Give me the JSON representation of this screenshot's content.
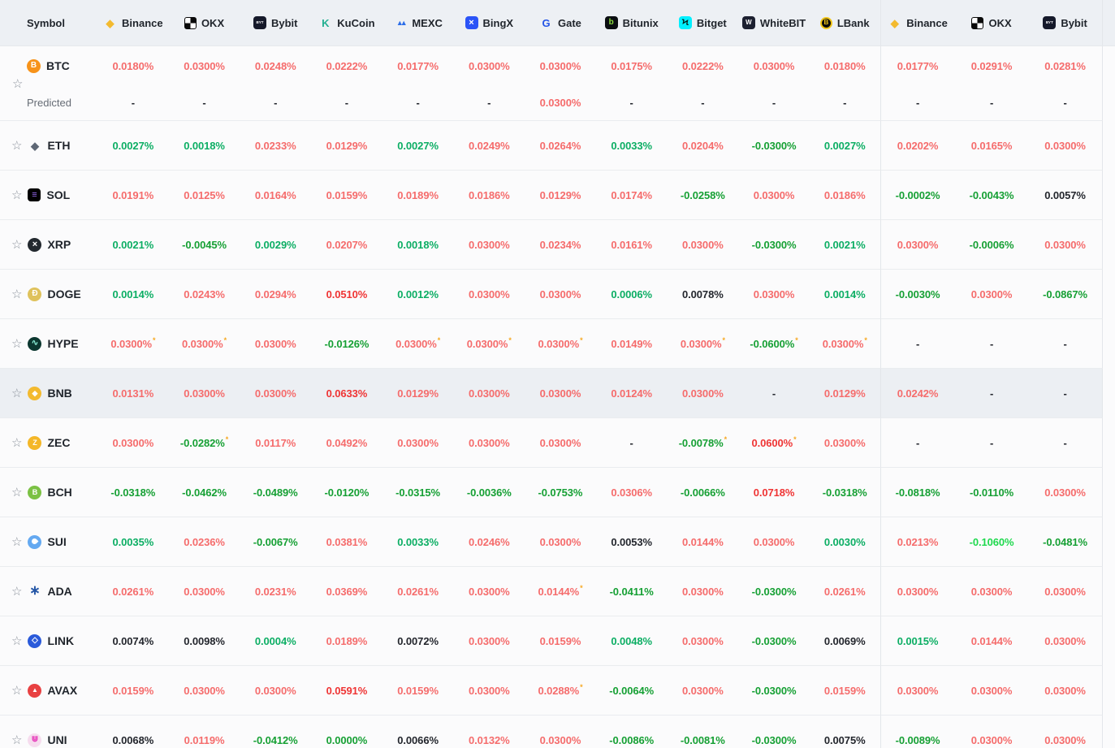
{
  "colors": {
    "red": "#f56c6c",
    "strongRed": "#ef3434",
    "green": "#0cae64",
    "darkGreen": "#16a034",
    "limeGreen": "#1fd94e",
    "black": "#23262d",
    "dash": "#23262d",
    "asterisk": "#f6a821"
  },
  "ui": {
    "star_glyph": "☆",
    "predicted_label": "Predicted"
  },
  "header": {
    "columns": [
      {
        "label": "Symbol"
      },
      {
        "label": "Binance",
        "icon": "binance"
      },
      {
        "label": "OKX",
        "icon": "okx"
      },
      {
        "label": "Bybit",
        "icon": "bybit"
      },
      {
        "label": "KuCoin",
        "icon": "kucoin"
      },
      {
        "label": "MEXC",
        "icon": "mexc"
      },
      {
        "label": "BingX",
        "icon": "bingx"
      },
      {
        "label": "Gate",
        "icon": "gate"
      },
      {
        "label": "Bitunix",
        "icon": "bitunix"
      },
      {
        "label": "Bitget",
        "icon": "bitget"
      },
      {
        "label": "WhiteBIT",
        "icon": "whitebit"
      },
      {
        "label": "LBank",
        "icon": "lbank"
      },
      {
        "label": "Binance",
        "icon": "binance"
      },
      {
        "label": "OKX",
        "icon": "okx"
      },
      {
        "label": "Bybit",
        "icon": "bybit"
      }
    ]
  },
  "exchange_icons": {
    "binance": {
      "shape": "none",
      "fg": "#f3ba2f",
      "glyph": "◆",
      "size": 13
    },
    "okx": {
      "shape": "checker",
      "glyph": ""
    },
    "bybit": {
      "shape": "square",
      "bg": "#15192a",
      "fg": "#ffffff",
      "glyph": "BYT",
      "size": 4.5
    },
    "kucoin": {
      "shape": "none",
      "fg": "#23af91",
      "glyph": "K",
      "size": 13
    },
    "mexc": {
      "shape": "none",
      "fg": "#2b6de8",
      "glyph": "▲▲",
      "size": 9,
      "ls": -4
    },
    "bingx": {
      "shape": "square",
      "bg": "#2b54f7",
      "fg": "#ffffff",
      "glyph": "×",
      "size": 11
    },
    "gate": {
      "shape": "none",
      "fg": "#2354e6",
      "glyph": "G",
      "size": 13
    },
    "bitunix": {
      "shape": "square",
      "bg": "#0b0e11",
      "fg": "#8bdc3f",
      "glyph": "b",
      "size": 10
    },
    "bitget": {
      "shape": "square",
      "bg": "#00f0ff",
      "fg": "#06211b",
      "glyph": "Ϟ",
      "size": 11
    },
    "whitebit": {
      "shape": "square",
      "bg": "#1c2030",
      "fg": "#ffffff",
      "glyph": "W",
      "size": 8
    },
    "lbank": {
      "shape": "lbank",
      "fg": "#f0c418",
      "glyph": "B",
      "size": 8
    }
  },
  "coin_icons": {
    "btc": {
      "shape": "circle",
      "bg": "#f7931a",
      "fg": "#ffffff",
      "glyph": "B",
      "size": 10
    },
    "eth": {
      "shape": "none",
      "fg": "#5f6876",
      "glyph": "◆",
      "size": 13
    },
    "sol": {
      "shape": "square",
      "bg": "#000000",
      "fg": "#9b6cf5",
      "glyph": "≡",
      "size": 11
    },
    "xrp": {
      "shape": "circle",
      "bg": "#23292f",
      "fg": "#ffffff",
      "glyph": "×",
      "size": 11
    },
    "doge": {
      "shape": "circle",
      "bg": "#dfc25c",
      "fg": "#ffffff",
      "glyph": "Ð",
      "size": 10
    },
    "hype": {
      "shape": "circle",
      "bg": "#0c3730",
      "fg": "#8ef5dc",
      "glyph": "∿",
      "size": 10
    },
    "bnb": {
      "shape": "circle",
      "bg": "#f3ba2f",
      "fg": "#ffffff",
      "glyph": "◆",
      "size": 9
    },
    "zec": {
      "shape": "circle",
      "bg": "#f4b728",
      "fg": "#ffffff",
      "glyph": "Z",
      "size": 9
    },
    "bch": {
      "shape": "circle",
      "bg": "#7bc144",
      "fg": "#ffffff",
      "glyph": "B",
      "size": 9
    },
    "sui": {
      "shape": "drop",
      "bg": "#64a9f1",
      "glyph": ""
    },
    "ada": {
      "shape": "none",
      "fg": "#2456a6",
      "glyph": "∗",
      "size": 16
    },
    "link": {
      "shape": "circle",
      "bg": "#2a5ada",
      "fg": "#ffffff",
      "glyph": "◇",
      "size": 10
    },
    "avax": {
      "shape": "circle",
      "bg": "#e84142",
      "fg": "#ffffff",
      "glyph": "▲",
      "size": 8
    },
    "uni": {
      "shape": "circle",
      "bg": "#f6dcee",
      "fg": "#e633b8",
      "glyph": "⋓",
      "size": 10
    }
  },
  "rows": [
    {
      "symbol": "BTC",
      "icon": "btc",
      "cells": [
        [
          "0.0180%",
          "red"
        ],
        [
          "0.0300%",
          "red"
        ],
        [
          "0.0248%",
          "red"
        ],
        [
          "0.0222%",
          "red"
        ],
        [
          "0.0177%",
          "red"
        ],
        [
          "0.0300%",
          "red"
        ],
        [
          "0.0300%",
          "red"
        ],
        [
          "0.0175%",
          "red"
        ],
        [
          "0.0222%",
          "red"
        ],
        [
          "0.0300%",
          "red"
        ],
        [
          "0.0180%",
          "red"
        ],
        [
          "0.0177%",
          "red"
        ],
        [
          "0.0291%",
          "red"
        ],
        [
          "0.0281%",
          "red"
        ]
      ],
      "predicted": {
        "label": "Predicted",
        "cells": [
          [
            "-",
            "dash"
          ],
          [
            "-",
            "dash"
          ],
          [
            "-",
            "dash"
          ],
          [
            "-",
            "dash"
          ],
          [
            "-",
            "dash"
          ],
          [
            "-",
            "dash"
          ],
          [
            "0.0300%",
            "red"
          ],
          [
            "-",
            "dash"
          ],
          [
            "-",
            "dash"
          ],
          [
            "-",
            "dash"
          ],
          [
            "-",
            "dash"
          ],
          [
            "-",
            "dash"
          ],
          [
            "-",
            "dash"
          ],
          [
            "-",
            "dash"
          ]
        ]
      }
    },
    {
      "symbol": "ETH",
      "icon": "eth",
      "cells": [
        [
          "0.0027%",
          "green"
        ],
        [
          "0.0018%",
          "green"
        ],
        [
          "0.0233%",
          "red"
        ],
        [
          "0.0129%",
          "red"
        ],
        [
          "0.0027%",
          "green"
        ],
        [
          "0.0249%",
          "red"
        ],
        [
          "0.0264%",
          "red"
        ],
        [
          "0.0033%",
          "green"
        ],
        [
          "0.0204%",
          "red"
        ],
        [
          "-0.0300%",
          "darkGreen"
        ],
        [
          "0.0027%",
          "green"
        ],
        [
          "0.0202%",
          "red"
        ],
        [
          "0.0165%",
          "red"
        ],
        [
          "0.0300%",
          "red"
        ]
      ]
    },
    {
      "symbol": "SOL",
      "icon": "sol",
      "cells": [
        [
          "0.0191%",
          "red"
        ],
        [
          "0.0125%",
          "red"
        ],
        [
          "0.0164%",
          "red"
        ],
        [
          "0.0159%",
          "red"
        ],
        [
          "0.0189%",
          "red"
        ],
        [
          "0.0186%",
          "red"
        ],
        [
          "0.0129%",
          "red"
        ],
        [
          "0.0174%",
          "red"
        ],
        [
          "-0.0258%",
          "darkGreen"
        ],
        [
          "0.0300%",
          "red"
        ],
        [
          "0.0186%",
          "red"
        ],
        [
          "-0.0002%",
          "darkGreen"
        ],
        [
          "-0.0043%",
          "darkGreen"
        ],
        [
          "0.0057%",
          "black"
        ]
      ]
    },
    {
      "symbol": "XRP",
      "icon": "xrp",
      "cells": [
        [
          "0.0021%",
          "green"
        ],
        [
          "-0.0045%",
          "darkGreen"
        ],
        [
          "0.0029%",
          "green"
        ],
        [
          "0.0207%",
          "red"
        ],
        [
          "0.0018%",
          "green"
        ],
        [
          "0.0300%",
          "red"
        ],
        [
          "0.0234%",
          "red"
        ],
        [
          "0.0161%",
          "red"
        ],
        [
          "0.0300%",
          "red"
        ],
        [
          "-0.0300%",
          "darkGreen"
        ],
        [
          "0.0021%",
          "green"
        ],
        [
          "0.0300%",
          "red"
        ],
        [
          "-0.0006%",
          "darkGreen"
        ],
        [
          "0.0300%",
          "red"
        ]
      ]
    },
    {
      "symbol": "DOGE",
      "icon": "doge",
      "cells": [
        [
          "0.0014%",
          "green"
        ],
        [
          "0.0243%",
          "red"
        ],
        [
          "0.0294%",
          "red"
        ],
        [
          "0.0510%",
          "strongRed"
        ],
        [
          "0.0012%",
          "green"
        ],
        [
          "0.0300%",
          "red"
        ],
        [
          "0.0300%",
          "red"
        ],
        [
          "0.0006%",
          "green"
        ],
        [
          "0.0078%",
          "black"
        ],
        [
          "0.0300%",
          "red"
        ],
        [
          "0.0014%",
          "green"
        ],
        [
          "-0.0030%",
          "darkGreen"
        ],
        [
          "0.0300%",
          "red"
        ],
        [
          "-0.0867%",
          "darkGreen"
        ]
      ]
    },
    {
      "symbol": "HYPE",
      "icon": "hype",
      "cells": [
        [
          "0.0300%",
          "red",
          "*"
        ],
        [
          "0.0300%",
          "red",
          "*"
        ],
        [
          "0.0300%",
          "red"
        ],
        [
          "-0.0126%",
          "darkGreen"
        ],
        [
          "0.0300%",
          "red",
          "*"
        ],
        [
          "0.0300%",
          "red",
          "*"
        ],
        [
          "0.0300%",
          "red",
          "*"
        ],
        [
          "0.0149%",
          "red"
        ],
        [
          "0.0300%",
          "red",
          "*"
        ],
        [
          "-0.0600%",
          "darkGreen",
          "*"
        ],
        [
          "0.0300%",
          "red",
          "*"
        ],
        [
          "-",
          "dash"
        ],
        [
          "-",
          "dash"
        ],
        [
          "-",
          "dash"
        ]
      ]
    },
    {
      "symbol": "BNB",
      "icon": "bnb",
      "highlight": true,
      "cells": [
        [
          "0.0131%",
          "red"
        ],
        [
          "0.0300%",
          "red"
        ],
        [
          "0.0300%",
          "red"
        ],
        [
          "0.0633%",
          "strongRed"
        ],
        [
          "0.0129%",
          "red"
        ],
        [
          "0.0300%",
          "red"
        ],
        [
          "0.0300%",
          "red"
        ],
        [
          "0.0124%",
          "red"
        ],
        [
          "0.0300%",
          "red"
        ],
        [
          "-",
          "dash"
        ],
        [
          "0.0129%",
          "red"
        ],
        [
          "0.0242%",
          "red"
        ],
        [
          "-",
          "dash"
        ],
        [
          "-",
          "dash"
        ]
      ]
    },
    {
      "symbol": "ZEC",
      "icon": "zec",
      "cells": [
        [
          "0.0300%",
          "red"
        ],
        [
          "-0.0282%",
          "darkGreen",
          "*"
        ],
        [
          "0.0117%",
          "red"
        ],
        [
          "0.0492%",
          "red"
        ],
        [
          "0.0300%",
          "red"
        ],
        [
          "0.0300%",
          "red"
        ],
        [
          "0.0300%",
          "red"
        ],
        [
          "-",
          "dash"
        ],
        [
          "-0.0078%",
          "darkGreen",
          "*"
        ],
        [
          "0.0600%",
          "strongRed",
          "*"
        ],
        [
          "0.0300%",
          "red"
        ],
        [
          "-",
          "dash"
        ],
        [
          "-",
          "dash"
        ],
        [
          "-",
          "dash"
        ]
      ]
    },
    {
      "symbol": "BCH",
      "icon": "bch",
      "cells": [
        [
          "-0.0318%",
          "darkGreen"
        ],
        [
          "-0.0462%",
          "darkGreen"
        ],
        [
          "-0.0489%",
          "darkGreen"
        ],
        [
          "-0.0120%",
          "darkGreen"
        ],
        [
          "-0.0315%",
          "darkGreen"
        ],
        [
          "-0.0036%",
          "darkGreen"
        ],
        [
          "-0.0753%",
          "darkGreen"
        ],
        [
          "0.0306%",
          "red"
        ],
        [
          "-0.0066%",
          "darkGreen"
        ],
        [
          "0.0718%",
          "strongRed"
        ],
        [
          "-0.0318%",
          "darkGreen"
        ],
        [
          "-0.0818%",
          "darkGreen"
        ],
        [
          "-0.0110%",
          "darkGreen"
        ],
        [
          "0.0300%",
          "red"
        ]
      ]
    },
    {
      "symbol": "SUI",
      "icon": "sui",
      "cells": [
        [
          "0.0035%",
          "green"
        ],
        [
          "0.0236%",
          "red"
        ],
        [
          "-0.0067%",
          "darkGreen"
        ],
        [
          "0.0381%",
          "red"
        ],
        [
          "0.0033%",
          "green"
        ],
        [
          "0.0246%",
          "red"
        ],
        [
          "0.0300%",
          "red"
        ],
        [
          "0.0053%",
          "black"
        ],
        [
          "0.0144%",
          "red"
        ],
        [
          "0.0300%",
          "red"
        ],
        [
          "0.0030%",
          "green"
        ],
        [
          "0.0213%",
          "red"
        ],
        [
          "-0.1060%",
          "limeGreen"
        ],
        [
          "-0.0481%",
          "darkGreen"
        ]
      ]
    },
    {
      "symbol": "ADA",
      "icon": "ada",
      "cells": [
        [
          "0.0261%",
          "red"
        ],
        [
          "0.0300%",
          "red"
        ],
        [
          "0.0231%",
          "red"
        ],
        [
          "0.0369%",
          "red"
        ],
        [
          "0.0261%",
          "red"
        ],
        [
          "0.0300%",
          "red"
        ],
        [
          "0.0144%",
          "red",
          "*"
        ],
        [
          "-0.0411%",
          "darkGreen"
        ],
        [
          "0.0300%",
          "red"
        ],
        [
          "-0.0300%",
          "darkGreen"
        ],
        [
          "0.0261%",
          "red"
        ],
        [
          "0.0300%",
          "red"
        ],
        [
          "0.0300%",
          "red"
        ],
        [
          "0.0300%",
          "red"
        ]
      ]
    },
    {
      "symbol": "LINK",
      "icon": "link",
      "cells": [
        [
          "0.0074%",
          "black"
        ],
        [
          "0.0098%",
          "black"
        ],
        [
          "0.0004%",
          "green"
        ],
        [
          "0.0189%",
          "red"
        ],
        [
          "0.0072%",
          "black"
        ],
        [
          "0.0300%",
          "red"
        ],
        [
          "0.0159%",
          "red"
        ],
        [
          "0.0048%",
          "green"
        ],
        [
          "0.0300%",
          "red"
        ],
        [
          "-0.0300%",
          "darkGreen"
        ],
        [
          "0.0069%",
          "black"
        ],
        [
          "0.0015%",
          "green"
        ],
        [
          "0.0144%",
          "red"
        ],
        [
          "0.0300%",
          "red"
        ]
      ]
    },
    {
      "symbol": "AVAX",
      "icon": "avax",
      "cells": [
        [
          "0.0159%",
          "red"
        ],
        [
          "0.0300%",
          "red"
        ],
        [
          "0.0300%",
          "red"
        ],
        [
          "0.0591%",
          "strongRed"
        ],
        [
          "0.0159%",
          "red"
        ],
        [
          "0.0300%",
          "red"
        ],
        [
          "0.0288%",
          "red",
          "*"
        ],
        [
          "-0.0064%",
          "darkGreen"
        ],
        [
          "0.0300%",
          "red"
        ],
        [
          "-0.0300%",
          "darkGreen"
        ],
        [
          "0.0159%",
          "red"
        ],
        [
          "0.0300%",
          "red"
        ],
        [
          "0.0300%",
          "red"
        ],
        [
          "0.0300%",
          "red"
        ]
      ]
    },
    {
      "symbol": "UNI",
      "icon": "uni",
      "cells": [
        [
          "0.0068%",
          "black"
        ],
        [
          "0.0119%",
          "red"
        ],
        [
          "-0.0412%",
          "darkGreen"
        ],
        [
          "0.0000%",
          "darkGreen"
        ],
        [
          "0.0066%",
          "black"
        ],
        [
          "0.0132%",
          "red"
        ],
        [
          "0.0300%",
          "red"
        ],
        [
          "-0.0086%",
          "darkGreen"
        ],
        [
          "-0.0081%",
          "darkGreen"
        ],
        [
          "-0.0300%",
          "darkGreen"
        ],
        [
          "0.0075%",
          "black"
        ],
        [
          "-0.0089%",
          "darkGreen"
        ],
        [
          "0.0300%",
          "red"
        ],
        [
          "0.0300%",
          "red"
        ]
      ]
    }
  ]
}
